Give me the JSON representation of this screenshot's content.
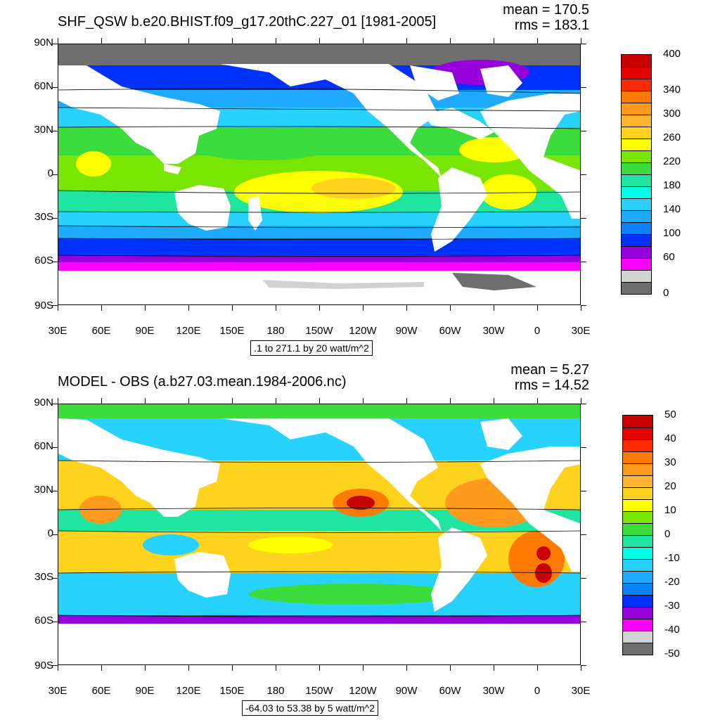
{
  "panels": [
    {
      "title": "SHF_QSW b.e20.BHIST.f09_g17.20thC.227_01 [1981-2005]",
      "mean": "mean = 170.5",
      "rms": "rms = 183.1",
      "caption": ".1 to 271.1 by 20 watt/m^2",
      "y_labels": [
        "90N",
        "60N",
        "30N",
        "0",
        "30S",
        "60S",
        "90S"
      ],
      "x_labels": [
        "30E",
        "60E",
        "90E",
        "120E",
        "150E",
        "180",
        "150W",
        "120W",
        "90W",
        "60W",
        "30W",
        "0",
        "30E"
      ],
      "colorbar": {
        "colors": [
          "#c80000",
          "#e60000",
          "#ff2a00",
          "#ff7a00",
          "#ff9a1e",
          "#ffb432",
          "#ffd21e",
          "#ffff00",
          "#78e600",
          "#3cdc3c",
          "#1ee6a0",
          "#00ffe6",
          "#28d2ff",
          "#1eaaff",
          "#0a82ff",
          "#0032ff",
          "#9600dc",
          "#ff00ff",
          "#d2d2d2",
          "#6e6e6e"
        ],
        "labels": [
          "400",
          "340",
          "300",
          "260",
          "220",
          "180",
          "140",
          "100",
          "60",
          "0"
        ],
        "label_index": [
          0,
          3,
          5,
          7,
          9,
          11,
          13,
          15,
          17,
          20
        ]
      }
    },
    {
      "title": "MODEL - OBS (a.b27.03.mean.1984-2006.nc)",
      "mean": "mean = 5.27",
      "rms": "rms = 14.52",
      "caption": "-64.03 to 53.38 by 5 watt/m^2",
      "y_labels": [
        "90N",
        "60N",
        "30N",
        "0",
        "30S",
        "60S",
        "90S"
      ],
      "x_labels": [
        "30E",
        "60E",
        "90E",
        "120E",
        "150E",
        "180",
        "150W",
        "120W",
        "90W",
        "60W",
        "30W",
        "0",
        "30E"
      ],
      "colorbar": {
        "colors": [
          "#c80000",
          "#e60000",
          "#ff2a00",
          "#ff7a00",
          "#ff9a1e",
          "#ffb432",
          "#ffd21e",
          "#ffff00",
          "#78e600",
          "#3cdc3c",
          "#1ee6a0",
          "#00ffe6",
          "#28d2ff",
          "#1eaaff",
          "#0a82ff",
          "#0032ff",
          "#9600dc",
          "#ff00ff",
          "#d2d2d2",
          "#6e6e6e"
        ],
        "labels": [
          "50",
          "40",
          "30",
          "20",
          "10",
          "0",
          "-10",
          "-20",
          "-30",
          "-40",
          "-50"
        ],
        "label_index": [
          0,
          2,
          4,
          6,
          8,
          10,
          12,
          14,
          16,
          18,
          20
        ]
      }
    }
  ]
}
